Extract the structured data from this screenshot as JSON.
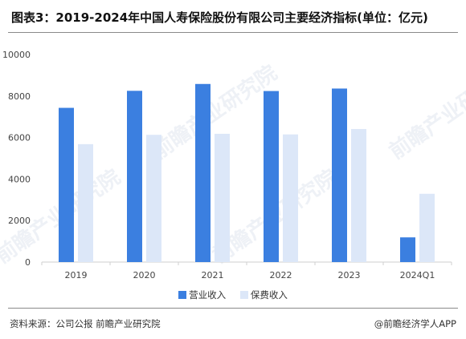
{
  "title": "图表3：2019-2024年中国人寿保险股份有限公司主要经济指标(单位：亿元)",
  "source": "资料来源：公司公报 前瞻产业研究院",
  "credit": "@前瞻经济学人APP",
  "watermark": "前瞻产业研究院",
  "colors": {
    "revenue": "#3b7fe0",
    "premium": "#dce7f8",
    "axis": "#cfcfcf"
  },
  "chart_data": {
    "type": "bar",
    "title": "图表3：2019-2024年中国人寿保险股份有限公司主要经济指标(单位：亿元)",
    "categories": [
      "2019",
      "2020",
      "2021",
      "2022",
      "2023",
      "2024Q1"
    ],
    "series": [
      {
        "name": "营业收入",
        "values": [
          7430,
          8250,
          8580,
          8240,
          8360,
          1190
        ]
      },
      {
        "name": "保费收入",
        "values": [
          5680,
          6130,
          6180,
          6150,
          6410,
          3290
        ]
      }
    ],
    "yticks": [
      0,
      2000,
      4000,
      6000,
      8000,
      10000
    ],
    "ylim": [
      0,
      10000
    ],
    "xlabel": "",
    "ylabel": "",
    "legend": "bottom",
    "grid": false
  }
}
